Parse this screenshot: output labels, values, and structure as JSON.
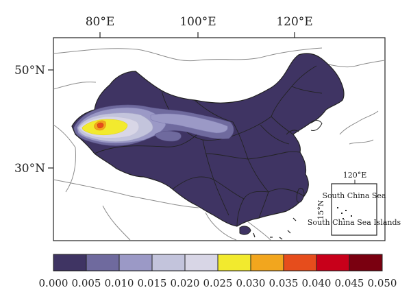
{
  "map": {
    "lon_labels": [
      "80°E",
      "100°E",
      "120°E"
    ],
    "lat_labels": [
      "50°N",
      "30°N"
    ],
    "inset": {
      "lon_label": "120°E",
      "lat_label": "15°N",
      "sea_label": "South China Sea",
      "islands_label": "South China Sea Islands"
    }
  },
  "colorbar": {
    "colors": [
      "#3f3463",
      "#6f6a9e",
      "#9b99c6",
      "#c3c4dc",
      "#d8d6e6",
      "#f2ea2e",
      "#f2a61e",
      "#e64d1c",
      "#c8001a",
      "#7a0010"
    ],
    "ticks": [
      "0.000",
      "0.005",
      "0.010",
      "0.015",
      "0.020",
      "0.025",
      "0.030",
      "0.035",
      "0.040",
      "0.045",
      "0.050"
    ]
  },
  "colors": {
    "land_base": "#3f3463",
    "border": "#222222",
    "neighbor_outline": "#8a8a8a"
  }
}
